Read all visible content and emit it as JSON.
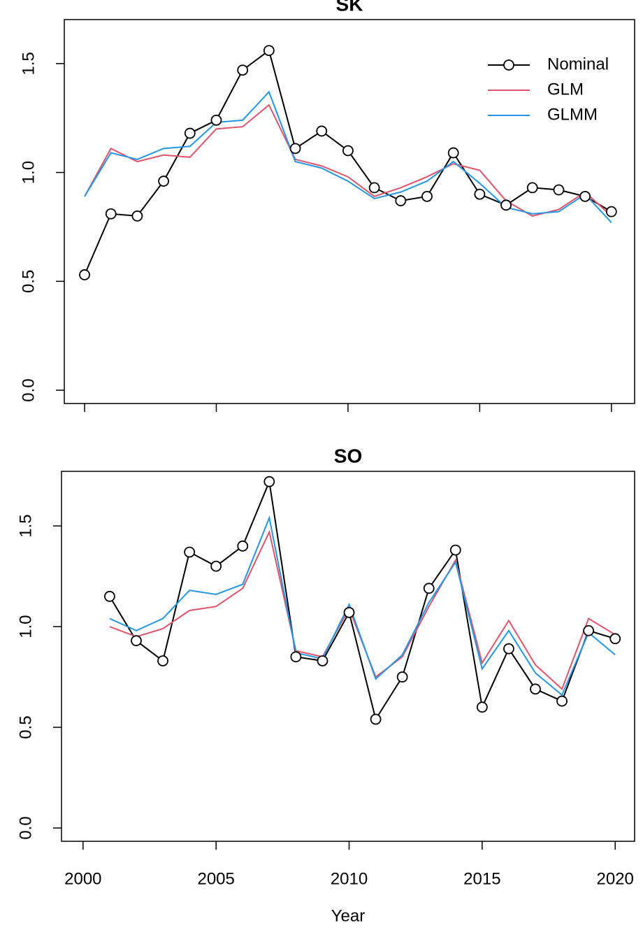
{
  "chart_data": [
    {
      "type": "line",
      "title": "SK",
      "x": [
        2000,
        2001,
        2002,
        2003,
        2004,
        2005,
        2006,
        2007,
        2008,
        2009,
        2010,
        2011,
        2012,
        2013,
        2014,
        2015,
        2016,
        2017,
        2018,
        2019,
        2020
      ],
      "series": [
        {
          "name": "Nominal",
          "color": "#000000",
          "marker": "circle",
          "values": [
            0.53,
            0.81,
            0.8,
            0.96,
            1.18,
            1.24,
            1.47,
            1.56,
            1.11,
            1.19,
            1.1,
            0.93,
            0.87,
            0.89,
            1.09,
            0.9,
            0.85,
            0.93,
            0.92,
            0.89,
            0.82
          ]
        },
        {
          "name": "GLM",
          "color": "#DF536B",
          "values": [
            0.89,
            1.11,
            1.05,
            1.08,
            1.07,
            1.2,
            1.21,
            1.31,
            1.06,
            1.03,
            0.98,
            0.89,
            0.93,
            0.98,
            1.04,
            1.01,
            0.87,
            0.8,
            0.83,
            0.91,
            0.8
          ]
        },
        {
          "name": "GLMM",
          "color": "#2297E6",
          "values": [
            0.89,
            1.09,
            1.06,
            1.11,
            1.12,
            1.23,
            1.24,
            1.37,
            1.05,
            1.02,
            0.96,
            0.88,
            0.91,
            0.96,
            1.05,
            0.95,
            0.84,
            0.81,
            0.82,
            0.9,
            0.77
          ]
        }
      ],
      "xlim": [
        1999.23,
        2020.88
      ],
      "xticks": [
        2000,
        2005,
        2010,
        2015,
        2020
      ],
      "show_xtick_labels": false,
      "ylim": [
        -0.061,
        1.702
      ],
      "yticks": [
        {
          "value": 0,
          "label": "0.0"
        },
        {
          "value": 0.5,
          "label": "0.5"
        },
        {
          "value": 1,
          "label": "1.0"
        },
        {
          "value": 1.5,
          "label": "1.5"
        }
      ],
      "legend": "topright"
    },
    {
      "type": "line",
      "title": "SO",
      "xlabel": "Year",
      "x": [
        2001,
        2002,
        2003,
        2004,
        2005,
        2006,
        2007,
        2008,
        2009,
        2010,
        2011,
        2012,
        2013,
        2014,
        2015,
        2016,
        2017,
        2018,
        2019,
        2020
      ],
      "series": [
        {
          "name": "Nominal",
          "color": "#000000",
          "marker": "circle",
          "values": [
            1.15,
            0.93,
            0.83,
            1.37,
            1.3,
            1.4,
            1.72,
            0.85,
            0.83,
            1.07,
            0.54,
            0.75,
            1.19,
            1.38,
            0.6,
            0.89,
            0.69,
            0.63,
            0.98,
            0.94
          ]
        },
        {
          "name": "GLM",
          "color": "#DF536B",
          "values": [
            1.0,
            0.95,
            0.99,
            1.08,
            1.1,
            1.19,
            1.47,
            0.88,
            0.85,
            1.09,
            0.75,
            0.85,
            1.1,
            1.33,
            0.82,
            1.03,
            0.81,
            0.69,
            1.04,
            0.96
          ]
        },
        {
          "name": "GLMM",
          "color": "#2297E6",
          "values": [
            1.04,
            0.98,
            1.04,
            1.18,
            1.16,
            1.21,
            1.54,
            0.87,
            0.84,
            1.11,
            0.74,
            0.86,
            1.12,
            1.32,
            0.79,
            0.98,
            0.77,
            0.66,
            0.97,
            0.86
          ]
        }
      ],
      "xlim": [
        1999.19,
        2020.73
      ],
      "xticks": [
        2000,
        2005,
        2010,
        2015,
        2020
      ],
      "show_xtick_labels": true,
      "ylim": [
        -0.066,
        1.771
      ],
      "yticks": [
        {
          "value": 0,
          "label": "0.0"
        },
        {
          "value": 0.5,
          "label": "0.5"
        },
        {
          "value": 1,
          "label": "1.0"
        },
        {
          "value": 1.5,
          "label": "1.5"
        }
      ]
    }
  ]
}
